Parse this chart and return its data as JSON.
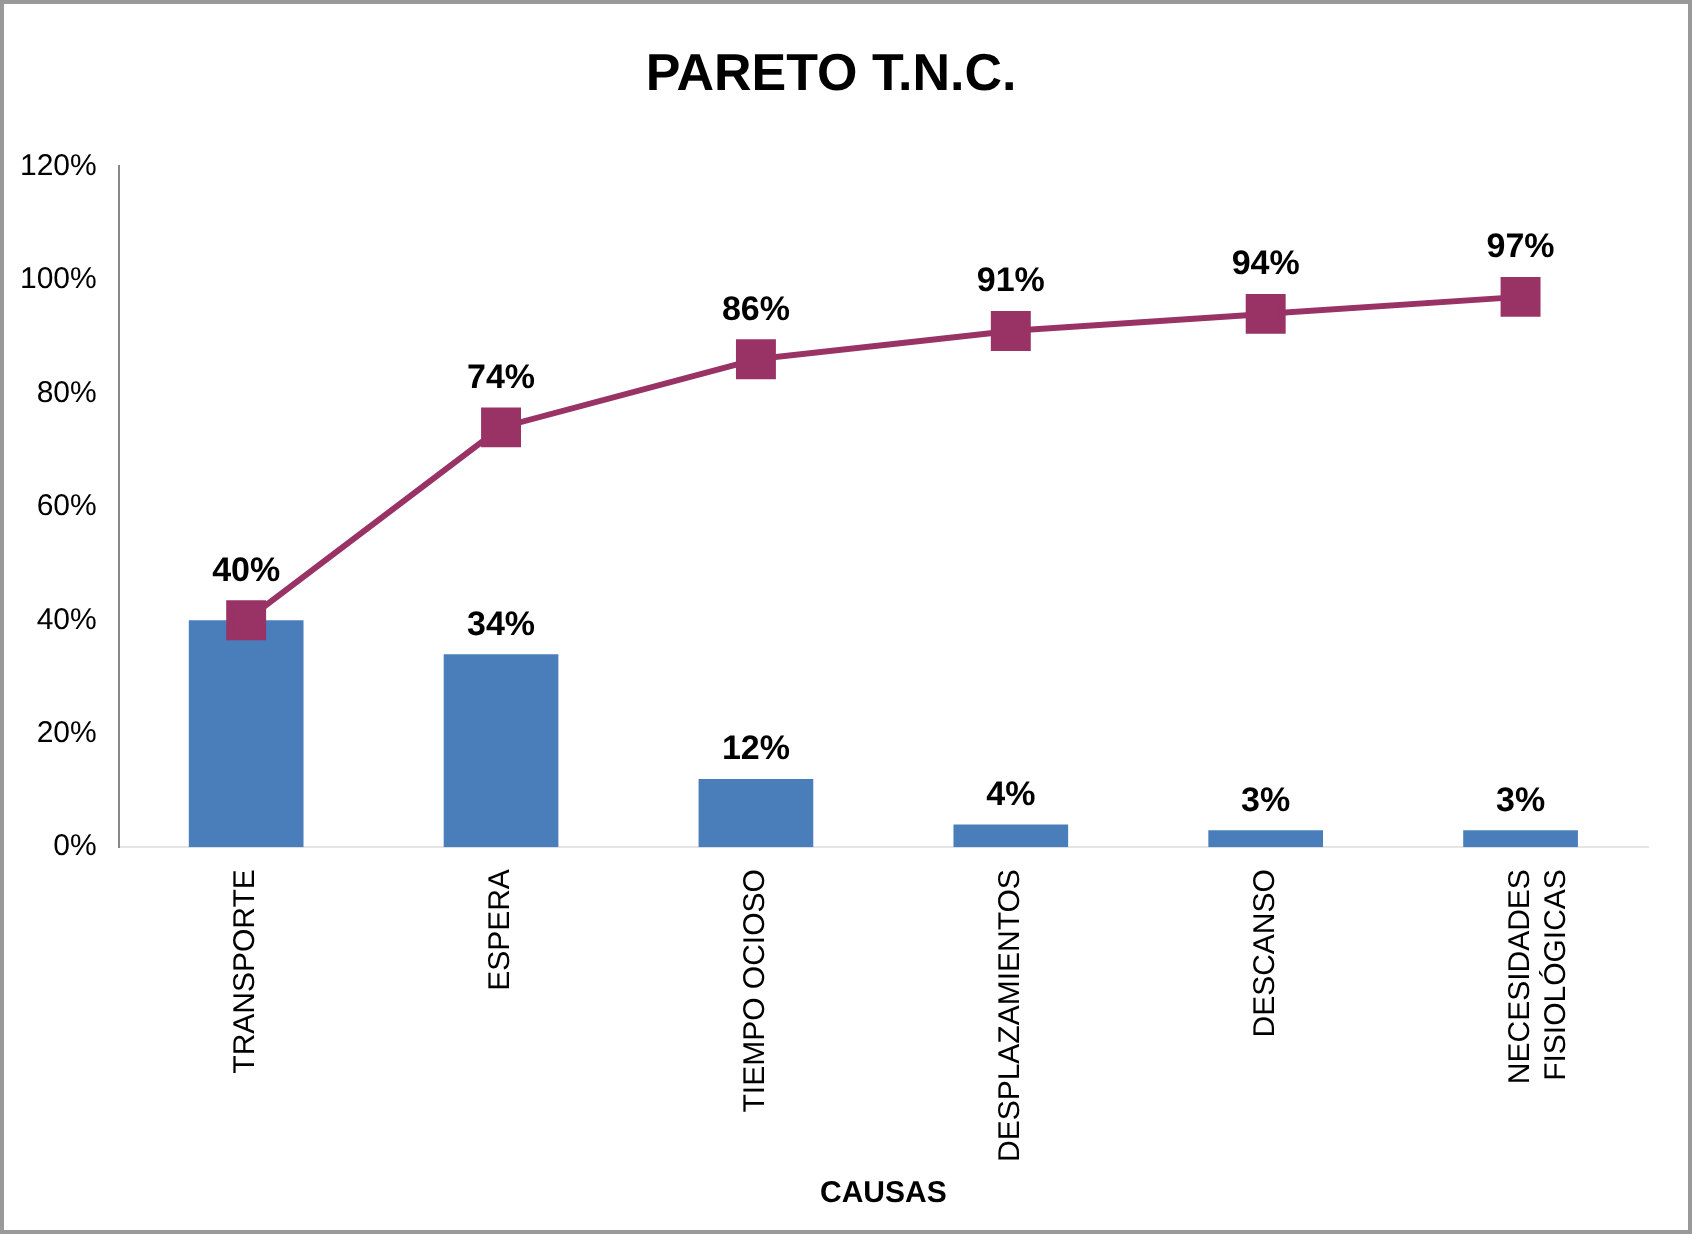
{
  "chart_data": {
    "type": "bar",
    "title": "PARETO T.N.C.",
    "xlabel": "CAUSAS",
    "categories": [
      "TRANSPORTE",
      "ESPERA",
      "TIEMPO OCIOSO",
      "DESPLAZAMIENTOS",
      "DESCANSO",
      "NECESIDADES FISIOLÓGICAS"
    ],
    "series": [
      {
        "color": "#4a7ebb",
        "values": [
          40,
          34,
          12,
          4,
          3,
          3
        ],
        "value_labels": [
          null,
          "34%",
          "12%",
          "4%",
          "3%",
          "3%"
        ]
      },
      {
        "type": "line",
        "color": "#993366",
        "values": [
          40,
          74,
          86,
          91,
          94,
          97
        ],
        "value_labels": [
          "40%",
          "74%",
          "86%",
          "91%",
          "94%",
          "97%"
        ],
        "marker": "square"
      }
    ],
    "ylim": [
      0,
      120
    ],
    "yticks": [
      {
        "value": 0,
        "label": "0%"
      },
      {
        "value": 20,
        "label": "20%"
      },
      {
        "value": 40,
        "label": "40%"
      },
      {
        "value": 60,
        "label": "60%"
      },
      {
        "value": 80,
        "label": "80%"
      },
      {
        "value": 100,
        "label": "100%"
      },
      {
        "value": 120,
        "label": "120%"
      }
    ],
    "grid": false,
    "legend": false
  }
}
